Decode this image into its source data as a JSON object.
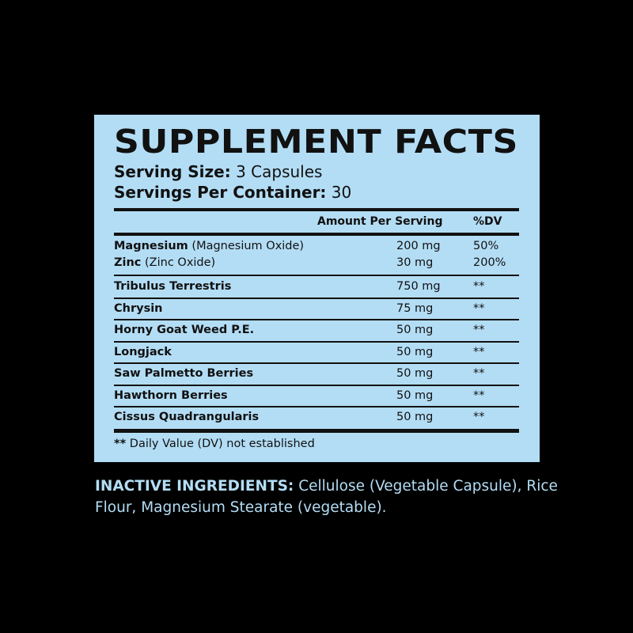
{
  "title": "SUPPLEMENT FACTS",
  "serving_size": {
    "label": "Serving Size:",
    "value": "3 Capsules"
  },
  "servings_per_container": {
    "label": "Servings Per Container:",
    "value": "30"
  },
  "columns": {
    "amount": "Amount Per Serving",
    "dv": "%DV"
  },
  "rows": [
    {
      "name": "Magnesium",
      "detail": "(Magnesium Oxide)",
      "amount": "200 mg",
      "dv": "50%"
    },
    {
      "name": "Zinc",
      "detail": "(Zinc Oxide)",
      "amount": "30 mg",
      "dv": "200%"
    },
    {
      "name": "Tribulus Terrestris",
      "detail": "",
      "amount": "750 mg",
      "dv": "**"
    },
    {
      "name": "Chrysin",
      "detail": "",
      "amount": "75 mg",
      "dv": "**"
    },
    {
      "name": "Horny Goat Weed P.E.",
      "detail": "",
      "amount": "50 mg",
      "dv": "**"
    },
    {
      "name": "Longjack",
      "detail": "",
      "amount": "50 mg",
      "dv": "**"
    },
    {
      "name": "Saw Palmetto Berries",
      "detail": "",
      "amount": "50 mg",
      "dv": "**"
    },
    {
      "name": "Hawthorn Berries",
      "detail": "",
      "amount": "50 mg",
      "dv": "**"
    },
    {
      "name": "Cissus Quadrangularis",
      "detail": "",
      "amount": "50 mg",
      "dv": "**"
    }
  ],
  "footnote": {
    "mark": "**",
    "text": "Daily Value (DV) not established"
  },
  "inactive": {
    "label": "INACTIVE INGREDIENTS:",
    "text": "Cellulose (Vegetable Capsule), Rice Flour, Magnesium Stearate (vegetable)."
  },
  "colors": {
    "panel": "#b3ddf5",
    "background": "#000000",
    "text": "#111111"
  }
}
